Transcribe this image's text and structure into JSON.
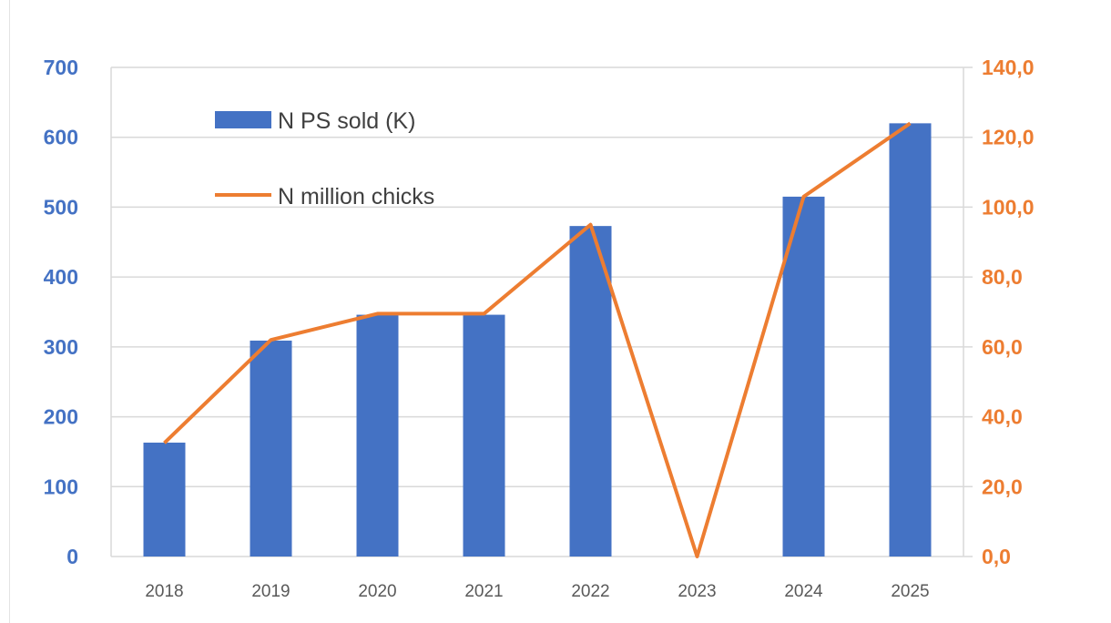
{
  "chart_data": {
    "type": "bar",
    "categories": [
      "2018",
      "2019",
      "2020",
      "2021",
      "2022",
      "2023",
      "2024",
      "2025"
    ],
    "series": [
      {
        "name": "N PS sold (K)",
        "type": "bar",
        "axis": "left",
        "color": "#4472C4",
        "values": [
          163,
          309,
          346,
          346,
          473,
          0,
          515,
          620
        ]
      },
      {
        "name": "N million chicks",
        "type": "line",
        "axis": "right",
        "color": "#ED7D31",
        "values": [
          32.5,
          62,
          69.5,
          69.5,
          95,
          0,
          103,
          124
        ]
      }
    ],
    "y_left": {
      "lim": [
        0,
        700
      ],
      "ticks": [
        "0",
        "100",
        "200",
        "300",
        "400",
        "500",
        "600",
        "700"
      ],
      "color": "#4472C4"
    },
    "y_right": {
      "lim": [
        0,
        140
      ],
      "ticks": [
        "0,0",
        "20,0",
        "40,0",
        "60,0",
        "80,0",
        "100,0",
        "120,0",
        "140,0"
      ],
      "color": "#ED7D31"
    },
    "grid": true,
    "legend": "top-left inside"
  }
}
